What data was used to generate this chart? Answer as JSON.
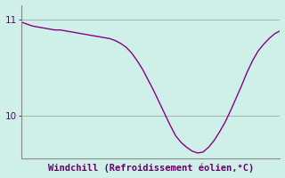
{
  "title": "Windchill (Refroidissement éolien,°C)",
  "background_color": "#cff0e8",
  "line_color": "#880088",
  "line_width": 1.0,
  "ylim": [
    9.55,
    11.15
  ],
  "yticks": [
    10,
    11
  ],
  "xlim": [
    0,
    47
  ],
  "x_values": [
    0,
    1,
    2,
    3,
    4,
    5,
    6,
    7,
    8,
    9,
    10,
    11,
    12,
    13,
    14,
    15,
    16,
    17,
    18,
    19,
    20,
    21,
    22,
    23,
    24,
    25,
    26,
    27,
    28,
    29,
    30,
    31,
    32,
    33,
    34,
    35,
    36,
    37,
    38,
    39,
    40,
    41,
    42,
    43,
    44,
    45,
    46,
    47
  ],
  "y_values": [
    10.97,
    10.95,
    10.93,
    10.92,
    10.91,
    10.9,
    10.89,
    10.89,
    10.88,
    10.87,
    10.86,
    10.85,
    10.84,
    10.83,
    10.82,
    10.81,
    10.8,
    10.78,
    10.75,
    10.71,
    10.65,
    10.57,
    10.48,
    10.37,
    10.26,
    10.14,
    10.02,
    9.9,
    9.79,
    9.72,
    9.67,
    9.63,
    9.61,
    9.62,
    9.67,
    9.74,
    9.83,
    9.93,
    10.05,
    10.18,
    10.31,
    10.45,
    10.57,
    10.67,
    10.74,
    10.8,
    10.85,
    10.88
  ],
  "grid_color": "#999999",
  "grid_linewidth": 0.5,
  "spine_color": "#888888",
  "tick_color": "#660066",
  "label_color": "#660066",
  "label_fontsize": 7.5,
  "tick_fontsize": 7.5
}
